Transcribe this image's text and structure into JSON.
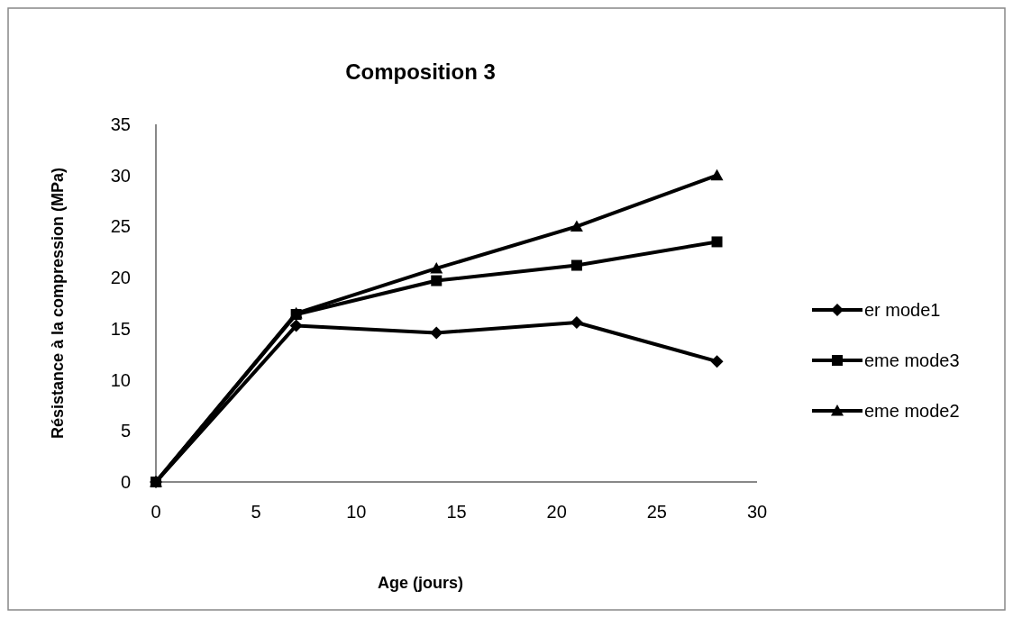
{
  "chart_data": {
    "type": "line",
    "title": "Composition 3",
    "xlabel": "Age (jours)",
    "ylabel": "Résistance à la compression (MPa)",
    "x": [
      0,
      7,
      14,
      21,
      28
    ],
    "series": [
      {
        "name": "er mode1",
        "color": "#000000",
        "marker": "diamond",
        "values": [
          0,
          15.3,
          14.6,
          15.6,
          11.8
        ]
      },
      {
        "name": "eme mode3",
        "color": "#000000",
        "marker": "square",
        "values": [
          0,
          16.4,
          19.7,
          21.2,
          23.5
        ]
      },
      {
        "name": "eme mode2",
        "color": "#000000",
        "marker": "triangle",
        "values": [
          0,
          16.5,
          20.9,
          25.0,
          30.0
        ]
      }
    ],
    "xlim": [
      0,
      30
    ],
    "xticks": [
      0,
      5,
      10,
      15,
      20,
      25,
      30
    ],
    "ylim": [
      0,
      35
    ],
    "yticks": [
      0,
      5,
      10,
      15,
      20,
      25,
      30,
      35
    ],
    "grid": false,
    "legend": "right",
    "line_style": "solid"
  }
}
